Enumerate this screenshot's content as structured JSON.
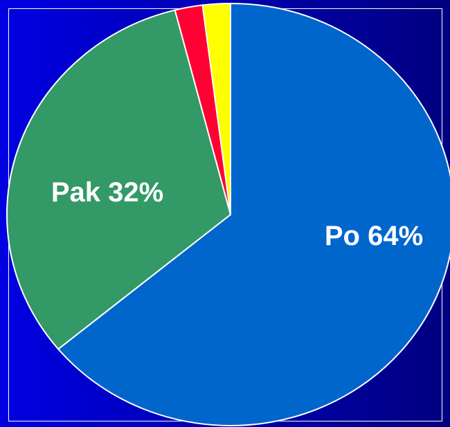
{
  "chart_data": {
    "type": "pie",
    "categories": [
      "Po",
      "Pak",
      null,
      null
    ],
    "values": [
      64,
      32,
      2,
      2
    ],
    "value_labels": [
      "64%",
      "32%",
      null,
      null
    ],
    "colors": [
      "#0066cc",
      "#339966",
      "#ff0033",
      "#ffff00"
    ]
  }
}
